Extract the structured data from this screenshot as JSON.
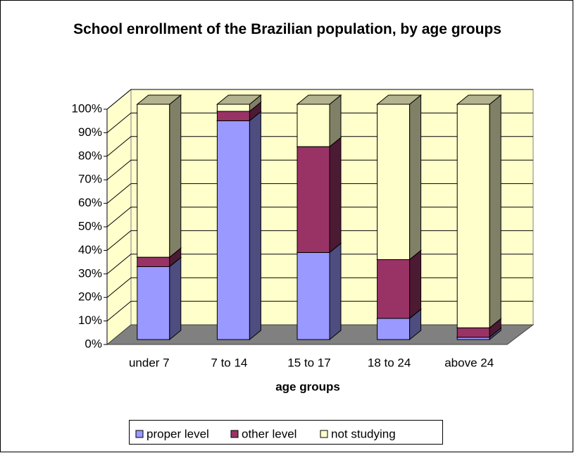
{
  "chart_data": {
    "type": "bar3d_stacked",
    "title": "School enrollment of the Brazilian population, by age groups",
    "x_label": "age groups",
    "categories": [
      "under 7",
      "7 to 14",
      "15 to 17",
      "18 to 24",
      "above 24"
    ],
    "series": [
      {
        "name": "proper level",
        "color": "#9999ff",
        "values": [
          31,
          93,
          37,
          9,
          1
        ]
      },
      {
        "name": "other level",
        "color": "#993366",
        "values": [
          4,
          4,
          45,
          25,
          4
        ]
      },
      {
        "name": "not studying",
        "color": "#ffffcc",
        "values": [
          65,
          3,
          18,
          66,
          95
        ]
      }
    ],
    "ylim": [
      0,
      100
    ],
    "yticks": [
      {
        "value": 0,
        "label": "0%"
      },
      {
        "value": 10,
        "label": "10%"
      },
      {
        "value": 20,
        "label": "20%"
      },
      {
        "value": 30,
        "label": "30%"
      },
      {
        "value": 40,
        "label": "40%"
      },
      {
        "value": 50,
        "label": "50%"
      },
      {
        "value": 60,
        "label": "60%"
      },
      {
        "value": 70,
        "label": "70%"
      },
      {
        "value": 80,
        "label": "80%"
      },
      {
        "value": 90,
        "label": "90%"
      },
      {
        "value": 100,
        "label": "100%"
      }
    ],
    "grid": true,
    "legend": "bottom"
  }
}
